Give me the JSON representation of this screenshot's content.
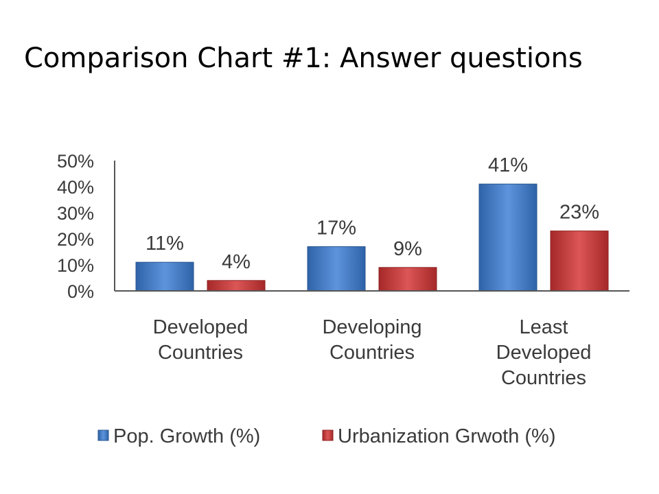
{
  "slide": {
    "title": "Comparison Chart #1: Answer questions"
  },
  "chart_data": {
    "type": "bar",
    "title": "",
    "xlabel": "",
    "ylabel": "",
    "ylim": [
      0,
      50
    ],
    "yticks": [
      "0%",
      "10%",
      "20%",
      "30%",
      "40%",
      "50%"
    ],
    "categories": [
      [
        "Developed",
        "Countries"
      ],
      [
        "Developing",
        "Countries"
      ],
      [
        "Least",
        "Developed",
        "Countries"
      ]
    ],
    "series": [
      {
        "name": "Pop. Growth (%)",
        "values": [
          11,
          17,
          41
        ],
        "labels": [
          "11%",
          "17%",
          "41%"
        ],
        "color": "#4a7fc6"
      },
      {
        "name": "Urbanization Grwoth (%)",
        "values": [
          4,
          9,
          23
        ],
        "labels": [
          "4%",
          "9%",
          "23%"
        ],
        "color": "#c23a3a"
      }
    ],
    "grid": false,
    "legend": "bottom"
  }
}
